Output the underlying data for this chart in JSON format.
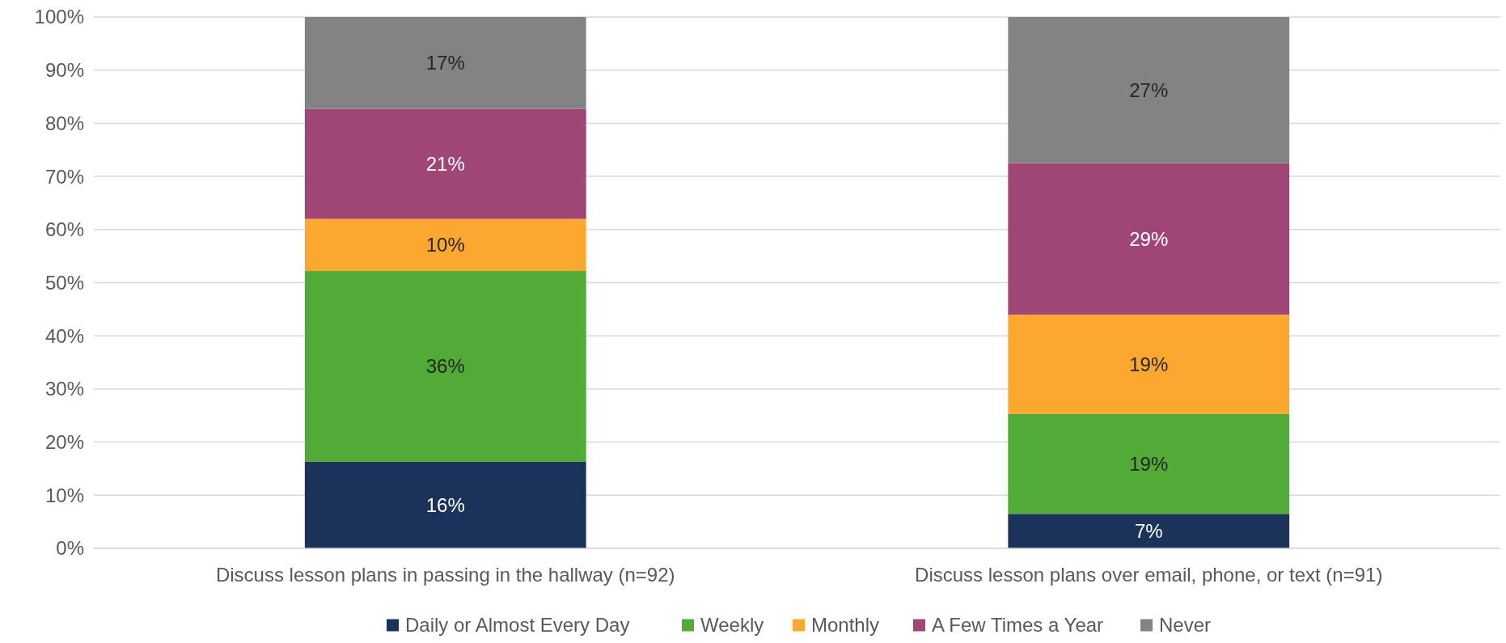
{
  "chart_data": {
    "type": "bar",
    "stacked": true,
    "categories": [
      "Discuss lesson plans in passing in the hallway (n=92)",
      "Discuss lesson plans over email, phone, or text (n=91)"
    ],
    "series": [
      {
        "name": "Daily or Almost Every Day",
        "color": "#1b325a",
        "values": [
          16.3,
          6.5
        ],
        "value_labels": [
          "16%",
          "7%"
        ]
      },
      {
        "name": "Weekly",
        "color": "#52aa37",
        "values": [
          35.9,
          18.8
        ],
        "value_labels": [
          "36%",
          "19%"
        ]
      },
      {
        "name": "Monthly",
        "color": "#fca830",
        "values": [
          9.8,
          18.7
        ],
        "value_labels": [
          "10%",
          "19%"
        ]
      },
      {
        "name": "A Few Times a Year",
        "color": "#a04677",
        "values": [
          20.7,
          28.5
        ],
        "value_labels": [
          "21%",
          "29%"
        ]
      },
      {
        "name": "Never",
        "color": "#838383",
        "values": [
          17.3,
          27.5
        ],
        "value_labels": [
          "17%",
          "27%"
        ]
      }
    ],
    "ylim": [
      0,
      100
    ],
    "yticks": [
      {
        "value": 0,
        "label": "0%"
      },
      {
        "value": 10,
        "label": "10%"
      },
      {
        "value": 20,
        "label": "20%"
      },
      {
        "value": 30,
        "label": "30%"
      },
      {
        "value": 40,
        "label": "40%"
      },
      {
        "value": 50,
        "label": "50%"
      },
      {
        "value": 60,
        "label": "60%"
      },
      {
        "value": 70,
        "label": "70%"
      },
      {
        "value": 80,
        "label": "80%"
      },
      {
        "value": 90,
        "label": "90%"
      },
      {
        "value": 100,
        "label": "100%"
      }
    ],
    "grid": "y",
    "legend": "bottom"
  }
}
